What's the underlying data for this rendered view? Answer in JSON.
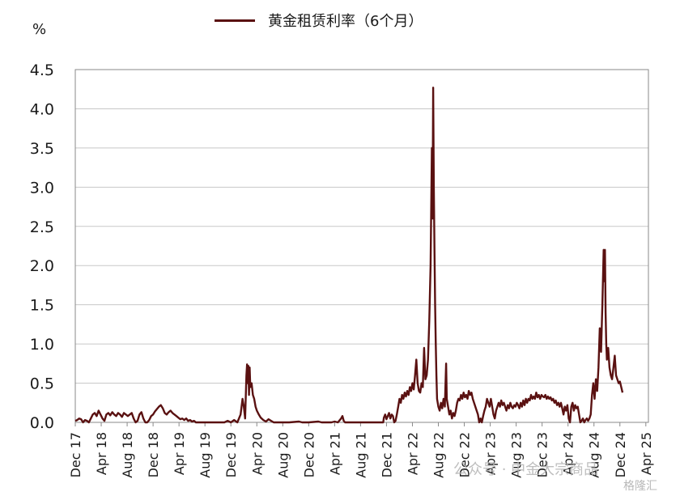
{
  "chart_data": {
    "type": "line",
    "title": "",
    "legend": "黄金租赁利率（6个月）",
    "unit_label": "%",
    "series_color": "#5a1111",
    "ylim": [
      0,
      4.5
    ],
    "y_ticks": [
      "0.0",
      "0.5",
      "1.0",
      "1.5",
      "2.0",
      "2.5",
      "3.0",
      "3.5",
      "4.0",
      "4.5"
    ],
    "x_ticks": [
      {
        "month": "Dec",
        "year": "17",
        "t": 0
      },
      {
        "month": "Apr",
        "year": "18",
        "t": 4
      },
      {
        "month": "Aug",
        "year": "18",
        "t": 8
      },
      {
        "month": "Dec",
        "year": "18",
        "t": 12
      },
      {
        "month": "Apr",
        "year": "19",
        "t": 16
      },
      {
        "month": "Aug",
        "year": "19",
        "t": 20
      },
      {
        "month": "Dec",
        "year": "19",
        "t": 24
      },
      {
        "month": "Apr",
        "year": "20",
        "t": 28
      },
      {
        "month": "Aug",
        "year": "20",
        "t": 32
      },
      {
        "month": "Dec",
        "year": "20",
        "t": 36
      },
      {
        "month": "Apr",
        "year": "21",
        "t": 40
      },
      {
        "month": "Aug",
        "year": "21",
        "t": 44
      },
      {
        "month": "Dec",
        "year": "21",
        "t": 48
      },
      {
        "month": "Apr",
        "year": "22",
        "t": 52
      },
      {
        "month": "Aug",
        "year": "22",
        "t": 56
      },
      {
        "month": "Dec",
        "year": "22",
        "t": 60
      },
      {
        "month": "Apr",
        "year": "23",
        "t": 64
      },
      {
        "month": "Aug",
        "year": "23",
        "t": 68
      },
      {
        "month": "Dec",
        "year": "23",
        "t": 72
      },
      {
        "month": "Apr",
        "year": "24",
        "t": 76
      },
      {
        "month": "Aug",
        "year": "24",
        "t": 80
      },
      {
        "month": "Dec",
        "year": "24",
        "t": 84
      },
      {
        "month": "Apr",
        "year": "25",
        "t": 88
      }
    ],
    "xlim": [
      0,
      88.4
    ],
    "points": [
      [
        0.0,
        0.02
      ],
      [
        0.3,
        0.03
      ],
      [
        0.6,
        0.05
      ],
      [
        0.9,
        0.04
      ],
      [
        1.2,
        0.0
      ],
      [
        1.5,
        0.03
      ],
      [
        1.8,
        0.02
      ],
      [
        2.1,
        0.0
      ],
      [
        2.4,
        0.05
      ],
      [
        2.7,
        0.1
      ],
      [
        3.0,
        0.12
      ],
      [
        3.3,
        0.08
      ],
      [
        3.6,
        0.15
      ],
      [
        3.9,
        0.1
      ],
      [
        4.2,
        0.05
      ],
      [
        4.5,
        0.02
      ],
      [
        4.8,
        0.1
      ],
      [
        5.1,
        0.12
      ],
      [
        5.4,
        0.09
      ],
      [
        5.7,
        0.13
      ],
      [
        6.0,
        0.1
      ],
      [
        6.3,
        0.08
      ],
      [
        6.6,
        0.12
      ],
      [
        6.9,
        0.1
      ],
      [
        7.2,
        0.07
      ],
      [
        7.5,
        0.12
      ],
      [
        7.8,
        0.1
      ],
      [
        8.1,
        0.08
      ],
      [
        8.4,
        0.1
      ],
      [
        8.7,
        0.12
      ],
      [
        9.0,
        0.05
      ],
      [
        9.3,
        0.0
      ],
      [
        9.6,
        0.02
      ],
      [
        9.9,
        0.1
      ],
      [
        10.2,
        0.13
      ],
      [
        10.5,
        0.05
      ],
      [
        10.8,
        0.0
      ],
      [
        11.1,
        0.0
      ],
      [
        11.4,
        0.03
      ],
      [
        11.7,
        0.08
      ],
      [
        12.0,
        0.1
      ],
      [
        12.3,
        0.14
      ],
      [
        12.6,
        0.17
      ],
      [
        12.9,
        0.2
      ],
      [
        13.2,
        0.22
      ],
      [
        13.5,
        0.18
      ],
      [
        13.8,
        0.12
      ],
      [
        14.1,
        0.1
      ],
      [
        14.4,
        0.13
      ],
      [
        14.7,
        0.15
      ],
      [
        15.0,
        0.12
      ],
      [
        15.3,
        0.1
      ],
      [
        15.6,
        0.08
      ],
      [
        15.9,
        0.06
      ],
      [
        16.2,
        0.04
      ],
      [
        16.5,
        0.05
      ],
      [
        16.8,
        0.03
      ],
      [
        17.1,
        0.05
      ],
      [
        17.4,
        0.02
      ],
      [
        17.7,
        0.03
      ],
      [
        18.0,
        0.01
      ],
      [
        18.3,
        0.02
      ],
      [
        18.6,
        0.0
      ],
      [
        19.0,
        0.0
      ],
      [
        21.0,
        0.0
      ],
      [
        22.0,
        0.0
      ],
      [
        23.0,
        0.0
      ],
      [
        23.5,
        0.02
      ],
      [
        24.0,
        0.0
      ],
      [
        24.5,
        0.03
      ],
      [
        25.0,
        0.0
      ],
      [
        25.5,
        0.1
      ],
      [
        25.8,
        0.3
      ],
      [
        26.0,
        0.2
      ],
      [
        26.2,
        0.05
      ],
      [
        26.4,
        0.6
      ],
      [
        26.5,
        0.74
      ],
      [
        26.6,
        0.5
      ],
      [
        26.7,
        0.72
      ],
      [
        26.8,
        0.35
      ],
      [
        26.9,
        0.7
      ],
      [
        27.0,
        0.45
      ],
      [
        27.2,
        0.5
      ],
      [
        27.4,
        0.35
      ],
      [
        27.6,
        0.3
      ],
      [
        27.8,
        0.2
      ],
      [
        28.0,
        0.15
      ],
      [
        28.3,
        0.1
      ],
      [
        28.6,
        0.06
      ],
      [
        29.0,
        0.03
      ],
      [
        29.4,
        0.01
      ],
      [
        29.8,
        0.04
      ],
      [
        30.2,
        0.02
      ],
      [
        30.6,
        0.0
      ],
      [
        31.0,
        0.0
      ],
      [
        33.0,
        0.0
      ],
      [
        34.5,
        0.01
      ],
      [
        35.0,
        0.0
      ],
      [
        36.0,
        0.0
      ],
      [
        37.5,
        0.01
      ],
      [
        38.0,
        0.0
      ],
      [
        39.5,
        0.0
      ],
      [
        40.0,
        0.01
      ],
      [
        40.5,
        0.0
      ],
      [
        41.0,
        0.05
      ],
      [
        41.2,
        0.08
      ],
      [
        41.4,
        0.02
      ],
      [
        41.6,
        0.0
      ],
      [
        43.0,
        0.0
      ],
      [
        46.0,
        0.0
      ],
      [
        47.5,
        0.0
      ],
      [
        47.6,
        0.06
      ],
      [
        47.8,
        0.1
      ],
      [
        48.0,
        0.04
      ],
      [
        48.2,
        0.08
      ],
      [
        48.4,
        0.12
      ],
      [
        48.6,
        0.05
      ],
      [
        48.8,
        0.1
      ],
      [
        49.0,
        0.08
      ],
      [
        49.2,
        0.0
      ],
      [
        49.4,
        0.02
      ],
      [
        49.6,
        0.1
      ],
      [
        49.8,
        0.2
      ],
      [
        50.0,
        0.3
      ],
      [
        50.2,
        0.25
      ],
      [
        50.4,
        0.35
      ],
      [
        50.6,
        0.3
      ],
      [
        50.8,
        0.38
      ],
      [
        51.0,
        0.33
      ],
      [
        51.2,
        0.4
      ],
      [
        51.4,
        0.35
      ],
      [
        51.6,
        0.45
      ],
      [
        51.8,
        0.4
      ],
      [
        52.0,
        0.5
      ],
      [
        52.2,
        0.42
      ],
      [
        52.4,
        0.6
      ],
      [
        52.6,
        0.8
      ],
      [
        52.8,
        0.5
      ],
      [
        53.0,
        0.4
      ],
      [
        53.2,
        0.38
      ],
      [
        53.4,
        0.5
      ],
      [
        53.6,
        0.45
      ],
      [
        53.8,
        0.95
      ],
      [
        54.0,
        0.55
      ],
      [
        54.2,
        0.6
      ],
      [
        54.4,
        0.8
      ],
      [
        54.6,
        1.3
      ],
      [
        54.8,
        2.0
      ],
      [
        55.0,
        3.5
      ],
      [
        55.1,
        2.6
      ],
      [
        55.2,
        4.27
      ],
      [
        55.3,
        3.0
      ],
      [
        55.4,
        2.2
      ],
      [
        55.5,
        1.5
      ],
      [
        55.6,
        1.0
      ],
      [
        55.7,
        0.6
      ],
      [
        55.8,
        0.3
      ],
      [
        56.0,
        0.2
      ],
      [
        56.2,
        0.15
      ],
      [
        56.4,
        0.25
      ],
      [
        56.6,
        0.18
      ],
      [
        56.8,
        0.3
      ],
      [
        57.0,
        0.2
      ],
      [
        57.2,
        0.75
      ],
      [
        57.3,
        0.3
      ],
      [
        57.5,
        0.2
      ],
      [
        57.7,
        0.1
      ],
      [
        57.9,
        0.15
      ],
      [
        58.1,
        0.05
      ],
      [
        58.3,
        0.12
      ],
      [
        58.5,
        0.08
      ],
      [
        58.7,
        0.15
      ],
      [
        58.9,
        0.25
      ],
      [
        59.1,
        0.3
      ],
      [
        59.3,
        0.28
      ],
      [
        59.5,
        0.35
      ],
      [
        59.7,
        0.3
      ],
      [
        59.9,
        0.38
      ],
      [
        60.1,
        0.32
      ],
      [
        60.3,
        0.35
      ],
      [
        60.5,
        0.3
      ],
      [
        60.7,
        0.4
      ],
      [
        60.9,
        0.35
      ],
      [
        61.1,
        0.38
      ],
      [
        61.3,
        0.3
      ],
      [
        61.5,
        0.25
      ],
      [
        61.7,
        0.2
      ],
      [
        61.9,
        0.15
      ],
      [
        62.1,
        0.1
      ],
      [
        62.3,
        0.0
      ],
      [
        62.5,
        0.05
      ],
      [
        62.7,
        0.0
      ],
      [
        62.9,
        0.08
      ],
      [
        63.1,
        0.15
      ],
      [
        63.3,
        0.2
      ],
      [
        63.5,
        0.3
      ],
      [
        63.7,
        0.25
      ],
      [
        63.9,
        0.2
      ],
      [
        64.1,
        0.3
      ],
      [
        64.3,
        0.2
      ],
      [
        64.5,
        0.1
      ],
      [
        64.7,
        0.05
      ],
      [
        64.9,
        0.15
      ],
      [
        65.1,
        0.2
      ],
      [
        65.3,
        0.25
      ],
      [
        65.5,
        0.2
      ],
      [
        65.7,
        0.28
      ],
      [
        65.9,
        0.22
      ],
      [
        66.1,
        0.25
      ],
      [
        66.3,
        0.2
      ],
      [
        66.5,
        0.15
      ],
      [
        66.7,
        0.22
      ],
      [
        66.9,
        0.18
      ],
      [
        67.1,
        0.25
      ],
      [
        67.3,
        0.2
      ],
      [
        67.5,
        0.18
      ],
      [
        67.7,
        0.22
      ],
      [
        67.9,
        0.2
      ],
      [
        68.1,
        0.25
      ],
      [
        68.3,
        0.22
      ],
      [
        68.5,
        0.18
      ],
      [
        68.7,
        0.25
      ],
      [
        68.9,
        0.2
      ],
      [
        69.1,
        0.28
      ],
      [
        69.3,
        0.22
      ],
      [
        69.5,
        0.3
      ],
      [
        69.7,
        0.25
      ],
      [
        69.9,
        0.3
      ],
      [
        70.1,
        0.28
      ],
      [
        70.3,
        0.35
      ],
      [
        70.5,
        0.3
      ],
      [
        70.7,
        0.33
      ],
      [
        70.9,
        0.3
      ],
      [
        71.1,
        0.38
      ],
      [
        71.3,
        0.32
      ],
      [
        71.5,
        0.35
      ],
      [
        71.7,
        0.3
      ],
      [
        71.9,
        0.35
      ],
      [
        72.1,
        0.33
      ],
      [
        72.3,
        0.32
      ],
      [
        72.5,
        0.35
      ],
      [
        72.7,
        0.3
      ],
      [
        72.9,
        0.33
      ],
      [
        73.1,
        0.3
      ],
      [
        73.3,
        0.32
      ],
      [
        73.5,
        0.28
      ],
      [
        73.7,
        0.3
      ],
      [
        73.9,
        0.25
      ],
      [
        74.1,
        0.28
      ],
      [
        74.3,
        0.22
      ],
      [
        74.5,
        0.25
      ],
      [
        74.7,
        0.2
      ],
      [
        74.9,
        0.25
      ],
      [
        75.1,
        0.18
      ],
      [
        75.3,
        0.1
      ],
      [
        75.5,
        0.2
      ],
      [
        75.7,
        0.15
      ],
      [
        75.9,
        0.22
      ],
      [
        76.1,
        0.05
      ],
      [
        76.3,
        0.0
      ],
      [
        76.5,
        0.2
      ],
      [
        76.7,
        0.25
      ],
      [
        76.9,
        0.15
      ],
      [
        77.1,
        0.22
      ],
      [
        77.3,
        0.18
      ],
      [
        77.5,
        0.2
      ],
      [
        77.7,
        0.1
      ],
      [
        77.9,
        0.0
      ],
      [
        78.1,
        0.02
      ],
      [
        78.3,
        0.05
      ],
      [
        78.5,
        0.0
      ],
      [
        78.7,
        0.03
      ],
      [
        78.9,
        0.05
      ],
      [
        79.1,
        0.02
      ],
      [
        79.3,
        0.05
      ],
      [
        79.5,
        0.1
      ],
      [
        79.7,
        0.35
      ],
      [
        79.9,
        0.5
      ],
      [
        80.1,
        0.3
      ],
      [
        80.3,
        0.55
      ],
      [
        80.5,
        0.4
      ],
      [
        80.7,
        0.7
      ],
      [
        80.9,
        1.2
      ],
      [
        81.1,
        0.9
      ],
      [
        81.3,
        1.5
      ],
      [
        81.5,
        2.2
      ],
      [
        81.6,
        1.8
      ],
      [
        81.7,
        2.2
      ],
      [
        81.8,
        1.4
      ],
      [
        81.9,
        1.0
      ],
      [
        82.0,
        0.8
      ],
      [
        82.2,
        0.95
      ],
      [
        82.4,
        0.7
      ],
      [
        82.6,
        0.6
      ],
      [
        82.8,
        0.55
      ],
      [
        83.0,
        0.7
      ],
      [
        83.2,
        0.85
      ],
      [
        83.4,
        0.6
      ],
      [
        83.6,
        0.55
      ],
      [
        83.8,
        0.5
      ],
      [
        84.0,
        0.52
      ],
      [
        84.2,
        0.45
      ],
      [
        84.4,
        0.38
      ]
    ]
  },
  "watermark": {
    "text": "公众号 · 中金大宗商品",
    "badge": "格隆汇"
  }
}
